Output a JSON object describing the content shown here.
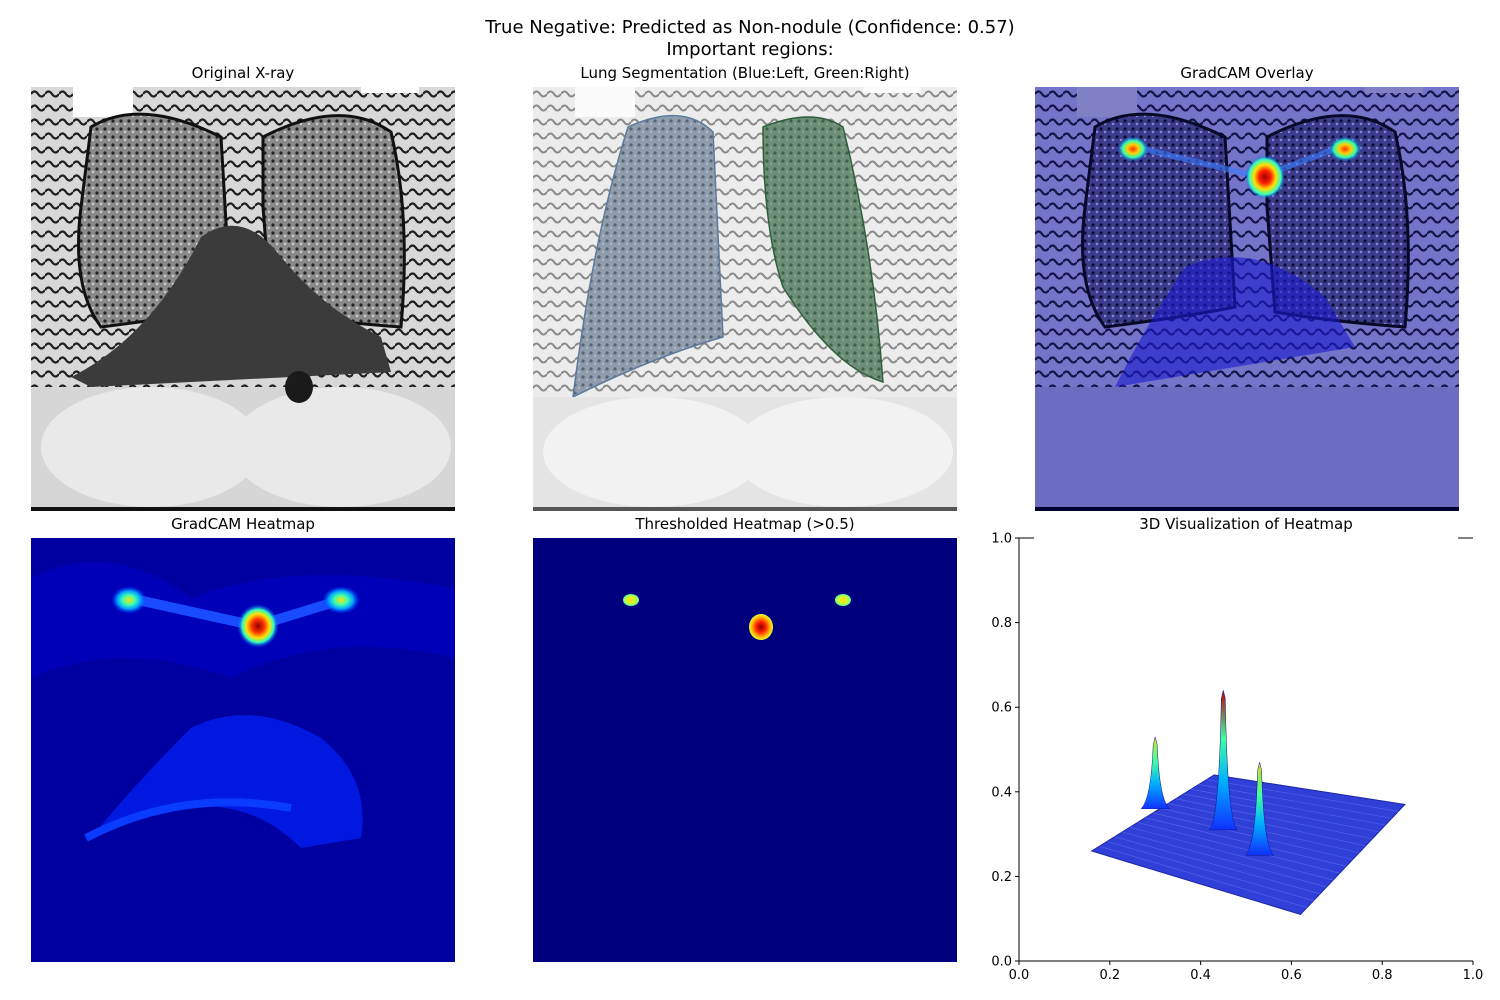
{
  "figure": {
    "suptitle_line1": "True Negative: Predicted as Non-nodule (Confidence: 0.57)",
    "suptitle_line2": "Important regions:"
  },
  "panels": {
    "original": {
      "title": "Original X-ray"
    },
    "segmentation": {
      "title": "Lung Segmentation (Blue:Left, Green:Right)"
    },
    "overlay": {
      "title": "GradCAM Overlay"
    },
    "heatmap": {
      "title": "GradCAM Heatmap"
    },
    "thresholded": {
      "title": "Thresholded Heatmap (>0.5)"
    },
    "visualization3d": {
      "title": "3D Visualization of Heatmap"
    }
  },
  "colors": {
    "jet_background": "#00007f",
    "heatmap_background": "#0000a0",
    "left_lung": "#6e8fb0",
    "right_lung": "#3e7a4e",
    "overlay_tint": "#2a2aa6",
    "xray_dark": "#2a2a2a",
    "xray_light": "#e6e6e6"
  },
  "chart_data": {
    "type": "surface",
    "title": "3D Visualization of Heatmap",
    "xlim": [
      0,
      1
    ],
    "ylim": [
      0,
      1
    ],
    "xticks": [
      "0.0",
      "0.2",
      "0.4",
      "0.6",
      "0.8",
      "1.0"
    ],
    "yticks": [
      "0.0",
      "0.2",
      "0.4",
      "0.6",
      "0.8",
      "1.0"
    ],
    "peaks": [
      {
        "x": 0.3,
        "y_base": 0.36,
        "y_top": 0.53,
        "color": "#d7e21a"
      },
      {
        "x": 0.45,
        "y_base": 0.31,
        "y_top": 0.64,
        "color": "#c00000"
      },
      {
        "x": 0.53,
        "y_base": 0.25,
        "y_top": 0.47,
        "color": "#e6d21a"
      }
    ],
    "surface_corners": [
      [
        0.16,
        0.26
      ],
      [
        0.43,
        0.44
      ],
      [
        0.85,
        0.37
      ],
      [
        0.62,
        0.11
      ]
    ]
  }
}
